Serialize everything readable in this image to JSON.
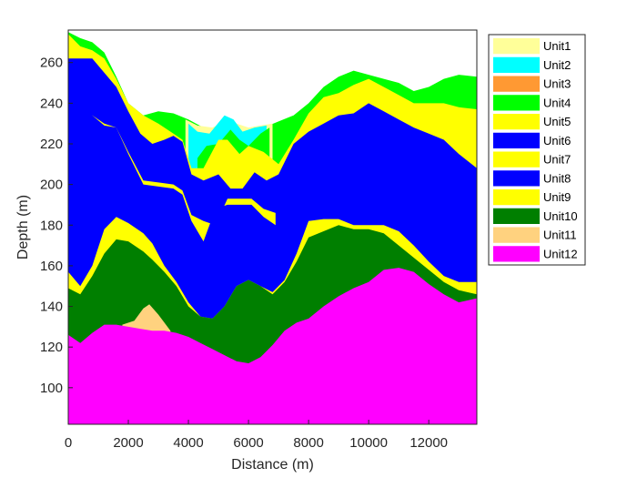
{
  "chart_data": {
    "type": "area",
    "xlabel": "Distance (m)",
    "ylabel": "Depth (m)",
    "xlim": [
      0,
      13600
    ],
    "ylim": [
      82,
      276
    ],
    "xticks": [
      0,
      2000,
      4000,
      6000,
      8000,
      10000,
      12000
    ],
    "yticks": [
      100,
      120,
      140,
      160,
      180,
      200,
      220,
      240,
      260
    ],
    "grid": false,
    "legend_position": "top-right",
    "units": [
      {
        "name": "Unit1",
        "color": "#FFFF99"
      },
      {
        "name": "Unit2",
        "color": "#00FFFF"
      },
      {
        "name": "Unit3",
        "color": "#FF9933"
      },
      {
        "name": "Unit4",
        "color": "#00FF00"
      },
      {
        "name": "Unit5",
        "color": "#FFFF00"
      },
      {
        "name": "Unit6",
        "color": "#0000FF"
      },
      {
        "name": "Unit7",
        "color": "#FFFF00"
      },
      {
        "name": "Unit8",
        "color": "#0000FF"
      },
      {
        "name": "Unit9",
        "color": "#FFFF00"
      },
      {
        "name": "Unit10",
        "color": "#007F00"
      },
      {
        "name": "Unit11",
        "color": "#FFD27F"
      },
      {
        "name": "Unit12",
        "color": "#FF00FF"
      }
    ],
    "layers": [
      {
        "unit": "Unit4",
        "top": [
          [
            0,
            275
          ],
          [
            400,
            272
          ],
          [
            800,
            270
          ],
          [
            1200,
            265
          ],
          [
            1600,
            253
          ],
          [
            2000,
            240
          ],
          [
            2500,
            234
          ],
          [
            3000,
            236
          ],
          [
            3500,
            235
          ],
          [
            4000,
            232
          ],
          [
            4500,
            228
          ],
          [
            5000,
            226
          ],
          [
            5500,
            229
          ],
          [
            6000,
            227
          ],
          [
            6500,
            228
          ],
          [
            7000,
            231
          ],
          [
            7500,
            234
          ],
          [
            8000,
            240
          ],
          [
            8500,
            248
          ],
          [
            9000,
            253
          ],
          [
            9500,
            256
          ],
          [
            10000,
            254
          ],
          [
            10500,
            252
          ],
          [
            11000,
            250
          ],
          [
            11500,
            246
          ],
          [
            12000,
            248
          ],
          [
            12500,
            252
          ],
          [
            13000,
            254
          ],
          [
            13600,
            253
          ]
        ]
      },
      {
        "unit": "Unit1",
        "top": [
          [
            3900,
            232
          ],
          [
            4300,
            229
          ],
          [
            4800,
            228
          ],
          [
            5200,
            231
          ],
          [
            5600,
            230
          ],
          [
            6000,
            228
          ],
          [
            6400,
            229
          ],
          [
            6800,
            230
          ]
        ]
      },
      {
        "unit": "Unit2",
        "top": [
          [
            4000,
            230
          ],
          [
            4300,
            226
          ],
          [
            4700,
            225
          ],
          [
            5200,
            234
          ],
          [
            5500,
            232
          ],
          [
            5800,
            226
          ],
          [
            6200,
            228
          ],
          [
            6600,
            229
          ]
        ]
      },
      {
        "unit": "Unit4",
        "top": [
          [
            4300,
            213
          ],
          [
            4600,
            219
          ],
          [
            5000,
            220
          ],
          [
            5400,
            227
          ],
          [
            5700,
            222
          ],
          [
            6000,
            219
          ],
          [
            6400,
            225
          ],
          [
            6700,
            228
          ]
        ]
      },
      {
        "unit": "Unit5",
        "top": [
          [
            0,
            274
          ],
          [
            400,
            268
          ],
          [
            800,
            266
          ],
          [
            1200,
            262
          ],
          [
            1600,
            252
          ],
          [
            2000,
            240
          ],
          [
            2500,
            234
          ],
          [
            3000,
            230
          ],
          [
            3500,
            225
          ],
          [
            3800,
            222
          ],
          [
            4100,
            208
          ],
          [
            4500,
            208
          ],
          [
            5000,
            222
          ],
          [
            5300,
            222
          ],
          [
            5700,
            215
          ],
          [
            6000,
            219
          ],
          [
            6500,
            216
          ],
          [
            7000,
            210
          ],
          [
            7500,
            222
          ],
          [
            8000,
            235
          ],
          [
            8500,
            243
          ],
          [
            9000,
            245
          ],
          [
            9500,
            249
          ],
          [
            10000,
            252
          ],
          [
            10500,
            248
          ],
          [
            11000,
            244
          ],
          [
            11500,
            240
          ],
          [
            12000,
            240
          ],
          [
            12500,
            240
          ],
          [
            13000,
            238
          ],
          [
            13600,
            237
          ]
        ]
      },
      {
        "unit": "Unit6",
        "top": [
          [
            0,
            262
          ],
          [
            400,
            262
          ],
          [
            800,
            262
          ],
          [
            1200,
            255
          ],
          [
            1600,
            248
          ],
          [
            2000,
            236
          ],
          [
            2400,
            225
          ],
          [
            2800,
            220
          ],
          [
            3200,
            222
          ],
          [
            3500,
            224
          ],
          [
            3800,
            221
          ],
          [
            4100,
            205
          ],
          [
            4500,
            202
          ],
          [
            5000,
            205
          ],
          [
            5400,
            198
          ],
          [
            5800,
            198
          ],
          [
            6200,
            206
          ],
          [
            6600,
            202
          ],
          [
            7000,
            205
          ],
          [
            7500,
            220
          ],
          [
            8000,
            226
          ],
          [
            8500,
            230
          ],
          [
            9000,
            234
          ],
          [
            9500,
            235
          ],
          [
            10000,
            240
          ],
          [
            10500,
            236
          ],
          [
            11000,
            232
          ],
          [
            11500,
            228
          ],
          [
            12000,
            225
          ],
          [
            12500,
            222
          ],
          [
            13000,
            215
          ],
          [
            13600,
            208
          ]
        ]
      },
      {
        "unit": "Unit7",
        "top": [
          [
            0,
            240
          ],
          [
            400,
            236
          ],
          [
            800,
            234
          ],
          [
            1200,
            230
          ],
          [
            1600,
            228
          ],
          [
            2000,
            216
          ],
          [
            2500,
            202
          ],
          [
            3000,
            201
          ],
          [
            3500,
            200
          ],
          [
            3800,
            197
          ],
          [
            4100,
            185
          ],
          [
            4500,
            182
          ],
          [
            4900,
            180
          ],
          [
            5300,
            193
          ],
          [
            5700,
            193
          ],
          [
            6100,
            193
          ],
          [
            6500,
            188
          ],
          [
            6900,
            186
          ]
        ]
      },
      {
        "unit": "Unit8",
        "top": [
          [
            0,
            240
          ],
          [
            400,
            238
          ],
          [
            800,
            234
          ],
          [
            1200,
            229
          ],
          [
            1600,
            228
          ],
          [
            2000,
            215
          ],
          [
            2500,
            200
          ],
          [
            3000,
            199
          ],
          [
            3500,
            198
          ],
          [
            3800,
            195
          ],
          [
            4100,
            182
          ],
          [
            4500,
            172
          ],
          [
            4900,
            188
          ],
          [
            5300,
            190
          ],
          [
            5700,
            190
          ],
          [
            6100,
            190
          ],
          [
            6500,
            184
          ],
          [
            6900,
            180
          ],
          [
            7300,
            175
          ],
          [
            7700,
            170
          ],
          [
            8000,
            185
          ],
          [
            8500,
            190
          ],
          [
            9000,
            195
          ],
          [
            9500,
            198
          ],
          [
            10000,
            200
          ],
          [
            10500,
            203
          ],
          [
            11000,
            207
          ],
          [
            11500,
            206
          ],
          [
            12000,
            204
          ],
          [
            12500,
            205
          ],
          [
            13000,
            208
          ],
          [
            13600,
            208
          ]
        ]
      },
      {
        "unit": "Unit9",
        "top": [
          [
            0,
            157
          ],
          [
            400,
            150
          ],
          [
            800,
            160
          ],
          [
            1200,
            178
          ],
          [
            1600,
            184
          ],
          [
            2000,
            181
          ],
          [
            2500,
            176
          ],
          [
            2800,
            171
          ],
          [
            3200,
            160
          ],
          [
            3600,
            152
          ],
          [
            4000,
            142
          ],
          [
            4400,
            135
          ],
          [
            4800,
            134
          ],
          [
            5200,
            140
          ],
          [
            5600,
            150
          ],
          [
            6000,
            153
          ],
          [
            6400,
            150
          ],
          [
            6800,
            147
          ],
          [
            7200,
            153
          ],
          [
            7600,
            166
          ],
          [
            8000,
            182
          ],
          [
            8500,
            183
          ],
          [
            9000,
            183
          ],
          [
            9500,
            180
          ],
          [
            10000,
            180
          ],
          [
            10500,
            180
          ],
          [
            11000,
            177
          ],
          [
            11500,
            170
          ],
          [
            12000,
            162
          ],
          [
            12500,
            155
          ],
          [
            13000,
            152
          ],
          [
            13600,
            152
          ]
        ]
      },
      {
        "unit": "Unit10",
        "top": [
          [
            0,
            149
          ],
          [
            400,
            146
          ],
          [
            800,
            155
          ],
          [
            1200,
            166
          ],
          [
            1600,
            173
          ],
          [
            2000,
            172
          ],
          [
            2500,
            167
          ],
          [
            2800,
            163
          ],
          [
            3200,
            157
          ],
          [
            3600,
            150
          ],
          [
            4000,
            140
          ],
          [
            4400,
            135
          ],
          [
            4800,
            134
          ],
          [
            5200,
            140
          ],
          [
            5600,
            150
          ],
          [
            6000,
            153
          ],
          [
            6400,
            150
          ],
          [
            6800,
            146
          ],
          [
            7200,
            152
          ],
          [
            7600,
            162
          ],
          [
            8000,
            174
          ],
          [
            8500,
            177
          ],
          [
            9000,
            180
          ],
          [
            9500,
            178
          ],
          [
            10000,
            178
          ],
          [
            10500,
            176
          ],
          [
            11000,
            170
          ],
          [
            11500,
            164
          ],
          [
            12000,
            158
          ],
          [
            12500,
            152
          ],
          [
            13000,
            148
          ],
          [
            13600,
            146
          ]
        ]
      },
      {
        "unit": "Unit11",
        "top": [
          [
            1800,
            131
          ],
          [
            2200,
            133
          ],
          [
            2500,
            139
          ],
          [
            2700,
            141
          ],
          [
            3000,
            136
          ],
          [
            3400,
            128
          ]
        ]
      },
      {
        "unit": "Unit12",
        "top": [
          [
            0,
            126
          ],
          [
            400,
            122
          ],
          [
            800,
            127
          ],
          [
            1200,
            131
          ],
          [
            1600,
            131
          ],
          [
            2000,
            130
          ],
          [
            2400,
            129
          ],
          [
            2800,
            128
          ],
          [
            3200,
            128
          ],
          [
            3600,
            127
          ],
          [
            4000,
            125
          ],
          [
            4400,
            122
          ],
          [
            4800,
            119
          ],
          [
            5200,
            116
          ],
          [
            5600,
            113
          ],
          [
            6000,
            112
          ],
          [
            6400,
            115
          ],
          [
            6800,
            121
          ],
          [
            7200,
            128
          ],
          [
            7600,
            132
          ],
          [
            8000,
            134
          ],
          [
            8500,
            140
          ],
          [
            9000,
            145
          ],
          [
            9500,
            149
          ],
          [
            10000,
            152
          ],
          [
            10500,
            158
          ],
          [
            11000,
            159
          ],
          [
            11500,
            157
          ],
          [
            12000,
            151
          ],
          [
            12500,
            146
          ],
          [
            13000,
            142
          ],
          [
            13600,
            144
          ]
        ]
      }
    ]
  }
}
